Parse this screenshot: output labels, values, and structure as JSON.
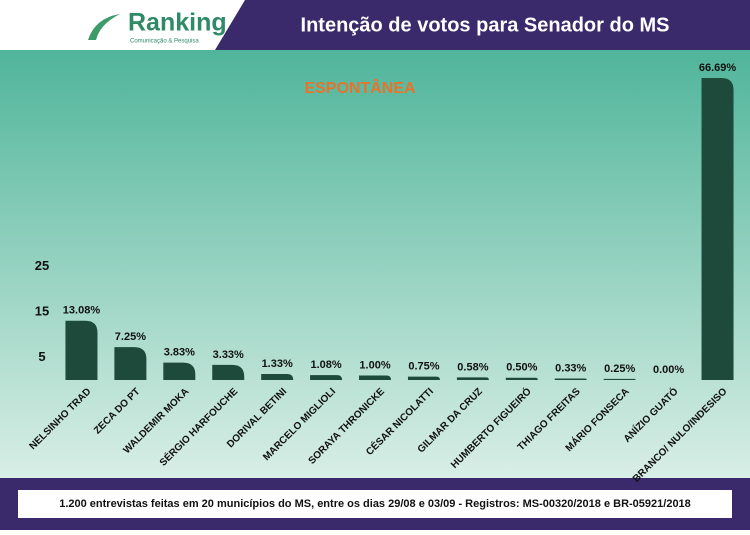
{
  "chart_data": {
    "type": "bar",
    "logo": "Ranking",
    "logo_tagline": "Comunicação & Pesquisa",
    "title": "Intenção de votos para Senador do MS",
    "subtitle": "ESPONTÂNEA",
    "footnote": "1.200 entrevistas feitas em 20 municípios do MS, entre os dias 29/08 e 03/09 - Registros: MS-00320/2018 e BR-05921/2018",
    "categories": [
      "NELSINHO TRAD",
      "ZECA DO PT",
      "WALDEMIR MOKA",
      "SÉRGIO HARFOUCHE",
      "DORIVAL BETINI",
      "MARCELO MIGLIOLI",
      "SORAYA THRONICKE",
      "CÉSAR NICOLATTI",
      "GILMAR DA CRUZ",
      "HUMBERTO FIGUEIRÓ",
      "THIAGO FREITAS",
      "MÁRIO FONSECA",
      "ANÍZIO GUATÓ",
      "BRANCO/ NULO/INDESISO"
    ],
    "values": [
      13.08,
      7.25,
      3.83,
      3.33,
      1.33,
      1.08,
      1.0,
      0.75,
      0.58,
      0.5,
      0.33,
      0.25,
      0.0,
      66.69
    ],
    "value_labels": [
      "13.08%",
      "7.25%",
      "3.83%",
      "3.33%",
      "1.33%",
      "1.08%",
      "1.00%",
      "0.75%",
      "0.58%",
      "0.50%",
      "0.33%",
      "0.25%",
      "0.00%",
      "66.69%"
    ],
    "color": "#1d4a3a",
    "ylim": [
      0,
      70
    ],
    "yticks": [
      5,
      15,
      25
    ]
  }
}
